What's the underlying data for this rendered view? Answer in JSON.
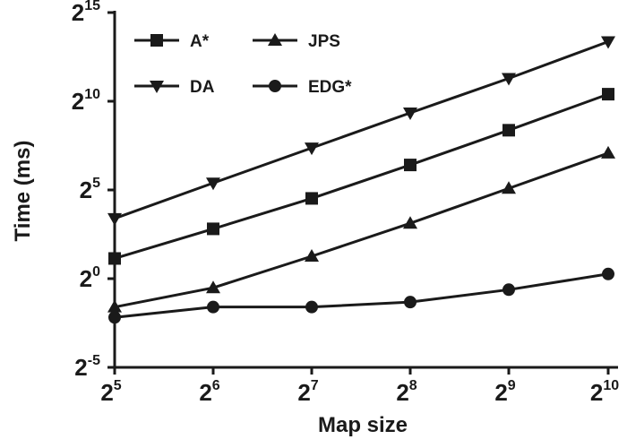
{
  "chart_data": {
    "type": "line",
    "xlabel": "Map size",
    "ylabel": "Time (ms)",
    "x_scale": "log2",
    "y_scale": "log2",
    "x": [
      32,
      64,
      128,
      256,
      512,
      1024
    ],
    "x_ticks": [
      {
        "base": "2",
        "exp": "5"
      },
      {
        "base": "2",
        "exp": "6"
      },
      {
        "base": "2",
        "exp": "7"
      },
      {
        "base": "2",
        "exp": "8"
      },
      {
        "base": "2",
        "exp": "9"
      },
      {
        "base": "2",
        "exp": "10"
      }
    ],
    "y_ticks": [
      {
        "value": 0.03125,
        "base": "2",
        "exp": "-5"
      },
      {
        "value": 1,
        "base": "2",
        "exp": "0"
      },
      {
        "value": 32,
        "base": "2",
        "exp": "5"
      },
      {
        "value": 1024,
        "base": "2",
        "exp": "10"
      },
      {
        "value": 32768,
        "base": "2",
        "exp": "15"
      }
    ],
    "xlim": [
      32,
      1024
    ],
    "ylim": [
      0.03125,
      32768
    ],
    "grid": false,
    "legend_position": "top-left",
    "series": [
      {
        "name": "A*",
        "marker": "square",
        "values": [
          2.2,
          7.0,
          23.0,
          85.0,
          330.0,
          1350.0
        ]
      },
      {
        "name": "JPS",
        "marker": "triangle-up",
        "values": [
          0.33,
          0.7,
          2.4,
          8.7,
          34.0,
          135.0
        ]
      },
      {
        "name": "DA",
        "marker": "triangle-down",
        "values": [
          10.5,
          42.0,
          165.0,
          650.0,
          2500.0,
          10500.0
        ]
      },
      {
        "name": "EDG*",
        "marker": "circle",
        "values": [
          0.22,
          0.33,
          0.33,
          0.4,
          0.65,
          1.2
        ]
      }
    ]
  }
}
